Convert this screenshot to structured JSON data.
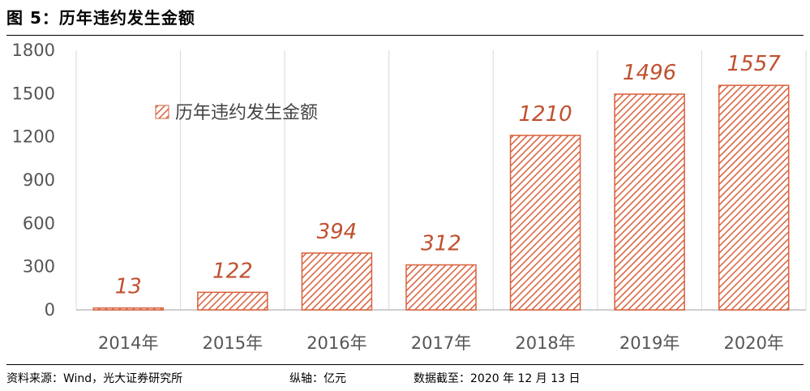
{
  "header": {
    "title": "图 5：历年违约发生金额"
  },
  "footer": {
    "source": "资料来源：Wind，光大证券研究所",
    "axis_unit": "纵轴：亿元",
    "date": "数据截至：2020 年 12 月 13 日"
  },
  "chart_data": {
    "type": "bar",
    "categories": [
      "2014年",
      "2015年",
      "2016年",
      "2017年",
      "2018年",
      "2019年",
      "2020年"
    ],
    "series": [
      {
        "name": "历年违约发生金额",
        "values": [
          13,
          122,
          394,
          312,
          1210,
          1496,
          1557
        ]
      }
    ],
    "data_labels": [
      "13",
      "122",
      "394",
      "312",
      "1210",
      "1496",
      "1557"
    ],
    "ylim": [
      0,
      1800
    ],
    "yticks": [
      "0",
      "300",
      "600",
      "900",
      "1200",
      "1500",
      "1800"
    ],
    "ytick_values": [
      0,
      300,
      600,
      900,
      1200,
      1500,
      1800
    ],
    "grid": "vertical",
    "legend_position": "top-left",
    "bar_color": "#d9603b",
    "label_color": "#c0502f"
  }
}
